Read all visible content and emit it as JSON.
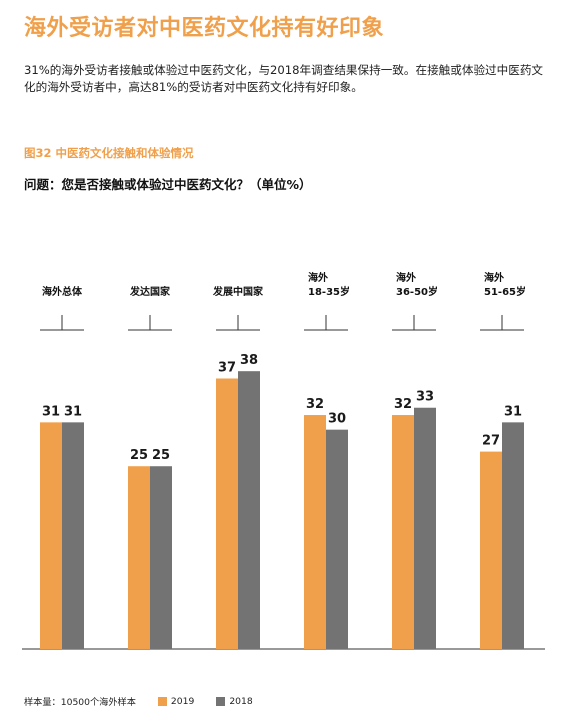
{
  "page": {
    "title": "海外受访者对中医药文化持有好印象",
    "intro": "31%的海外受访者接触或体验过中医药文化，与2018年调查结果保持一致。在接触或体验过中医药文化的海外受访者中，高达81%的受访者对中医药文化持有好印象。",
    "figure_title": "图32  中医药文化接触和体验情况",
    "question": "问题：您是否接触或体验过中医药文化？（单位%）",
    "sample_note": "样本量：10500个海外样本"
  },
  "colors": {
    "accent": "#f0a04b",
    "series_2019": "#f0a04b",
    "series_2018": "#737373"
  },
  "chart_data": {
    "type": "bar",
    "categories": [
      [
        "海外总体"
      ],
      [
        "发达国家"
      ],
      [
        "发展中国家"
      ],
      [
        "海外",
        "18-35岁"
      ],
      [
        "海外",
        "36-50岁"
      ],
      [
        "海外",
        "51-65岁"
      ]
    ],
    "series": [
      {
        "name": "2019",
        "color": "#f0a04b",
        "values": [
          31,
          25,
          37,
          32,
          32,
          27
        ]
      },
      {
        "name": "2018",
        "color": "#737373",
        "values": [
          31,
          25,
          38,
          30,
          33,
          31
        ]
      }
    ],
    "ylim": [
      0,
      45
    ],
    "data_labels": true,
    "legend": "bottom-left"
  }
}
